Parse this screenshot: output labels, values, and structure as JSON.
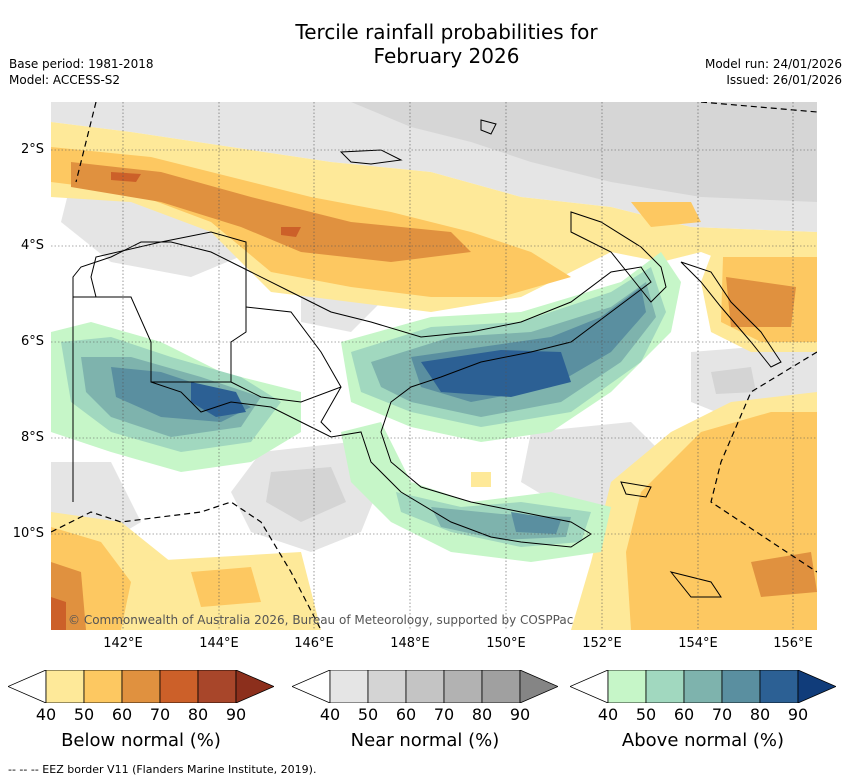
{
  "header": {
    "title_line1": "Tercile rainfall probabilities for",
    "title_line2": "February 2026",
    "base_period": "Base period: 1981-2018",
    "model": "Model: ACCESS-S2",
    "model_run": "Model run: 24/01/2026",
    "issued": "Issued: 26/01/2026"
  },
  "map": {
    "lat_labels": [
      "2°S",
      "4°S",
      "6°S",
      "8°S",
      "10°S"
    ],
    "lon_labels": [
      "142°E",
      "144°E",
      "146°E",
      "148°E",
      "150°E",
      "152°E",
      "154°E",
      "156°E"
    ],
    "copyright": "© Commonwealth of Australia 2026, Bureau of Meteorology, supported by COSPPac"
  },
  "colorbars": [
    {
      "label": "Below normal (%)",
      "ticks": [
        "40",
        "50",
        "60",
        "70",
        "80",
        "90"
      ],
      "colors": [
        "#ffffff",
        "#fee999",
        "#fdc861",
        "#e0913f",
        "#cc6029",
        "#a8462a",
        "#8c2f1c"
      ]
    },
    {
      "label": "Near normal (%)",
      "ticks": [
        "40",
        "50",
        "60",
        "70",
        "80",
        "90"
      ],
      "colors": [
        "#ffffff",
        "#e5e5e5",
        "#d4d4d4",
        "#c4c4c4",
        "#b2b2b2",
        "#a0a0a0",
        "#858585"
      ]
    },
    {
      "label": "Above normal (%)",
      "ticks": [
        "40",
        "50",
        "60",
        "70",
        "80",
        "90"
      ],
      "colors": [
        "#ffffff",
        "#c6f6c8",
        "#a1d8bf",
        "#7eb3ad",
        "#5a8fa0",
        "#2c6094",
        "#103c7a"
      ]
    }
  ],
  "footer": {
    "eez_note": "--  --  -- EEZ border V11 (Flanders Marine Institute, 2019)."
  }
}
